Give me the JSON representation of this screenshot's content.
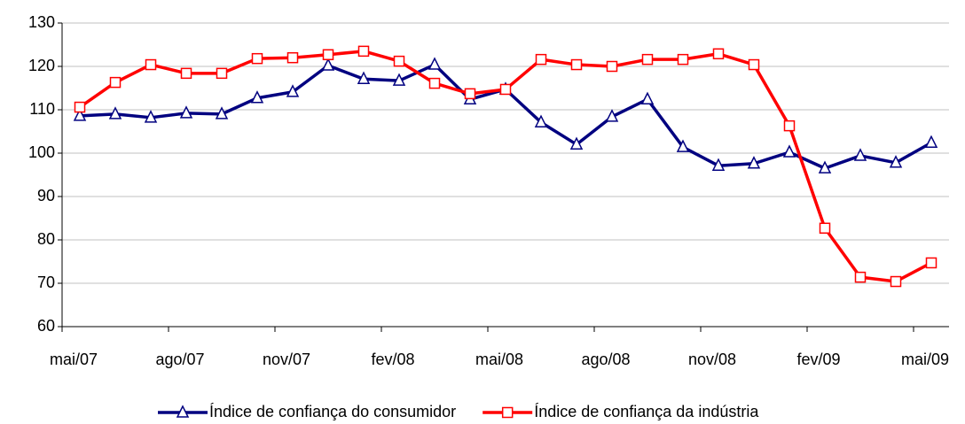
{
  "chart_data": {
    "type": "line",
    "categories": [
      "mai/07",
      null,
      null,
      "ago/07",
      null,
      null,
      "nov/07",
      null,
      null,
      "fev/08",
      null,
      null,
      "mai/08",
      null,
      null,
      "ago/08",
      null,
      null,
      "nov/08",
      null,
      null,
      "fev/09",
      null,
      null,
      "mai/09"
    ],
    "series": [
      {
        "name": "Índice de confiança do consumidor",
        "color": "#000080",
        "marker": "triangle",
        "values": [
          108.6,
          109,
          108.2,
          109.2,
          109,
          112.7,
          114.1,
          120.2,
          117.1,
          116.7,
          120.4,
          112.4,
          114.7,
          107.1,
          102,
          108.4,
          112.4,
          101.4,
          97.1,
          97.6,
          100.2,
          96.5,
          99.4,
          97.8,
          102.4
        ]
      },
      {
        "name": "Índice de confiança da indústria",
        "color": "#ff0000",
        "marker": "square",
        "values": [
          110.6,
          116.3,
          120.4,
          118.4,
          118.4,
          121.8,
          122,
          122.7,
          123.5,
          121.2,
          116.1,
          113.7,
          114.7,
          121.6,
          120.4,
          120,
          121.6,
          121.6,
          122.9,
          120.4,
          106.3,
          82.7,
          71.4,
          70.4,
          74.7
        ]
      }
    ],
    "ylim": [
      60,
      130
    ],
    "yticks": [
      60,
      70,
      80,
      90,
      100,
      110,
      120,
      130
    ],
    "grid": true,
    "legend": "bottom"
  }
}
